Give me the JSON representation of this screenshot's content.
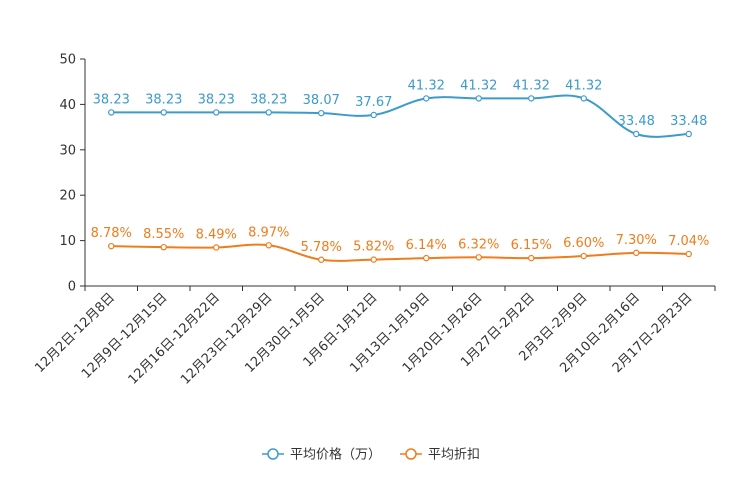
{
  "chart_data": {
    "type": "line",
    "categories": [
      "12月2日-12月8日",
      "12月9日-12月15日",
      "12月16日-12月22日",
      "12月23日-12月29日",
      "12月30日-1月5日",
      "1月6日-1月12日",
      "1月13日-1月19日",
      "1月20日-1月26日",
      "1月27日-2月2日",
      "2月3日-2月9日",
      "2月10日-2月16日",
      "2月17日-2月23日"
    ],
    "series": [
      {
        "name": "平均价格（万）",
        "color": "#3d9bcc",
        "values": [
          38.23,
          38.23,
          38.23,
          38.23,
          38.07,
          37.67,
          41.32,
          41.32,
          41.32,
          41.32,
          33.48,
          33.48
        ],
        "labels": [
          "38.23",
          "38.23",
          "38.23",
          "38.23",
          "38.07",
          "37.67",
          "41.32",
          "41.32",
          "41.32",
          "41.32",
          "33.48",
          "33.48"
        ]
      },
      {
        "name": "平均折扣",
        "color": "#f07c1c",
        "values": [
          8.78,
          8.55,
          8.49,
          8.97,
          5.78,
          5.82,
          6.14,
          6.32,
          6.15,
          6.6,
          7.3,
          7.04
        ],
        "labels": [
          "8.78%",
          "8.55%",
          "8.49%",
          "8.97%",
          "5.78%",
          "5.82%",
          "6.14%",
          "6.32%",
          "6.15%",
          "6.60%",
          "7.30%",
          "7.04%"
        ]
      }
    ],
    "y_ticks": [
      "0",
      "10",
      "20",
      "30",
      "40",
      "50"
    ],
    "ylim": [
      0,
      50
    ],
    "title": "",
    "xlabel": "",
    "ylabel": "",
    "legend_position": "bottom-center",
    "grid": false
  }
}
